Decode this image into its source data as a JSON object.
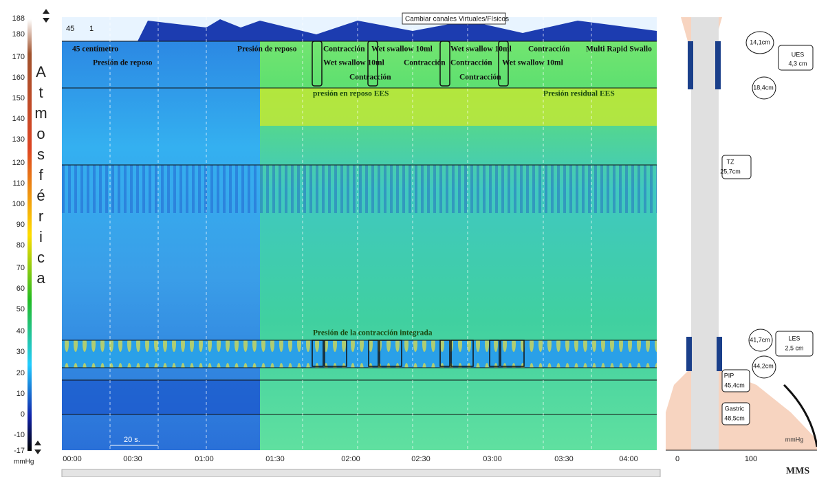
{
  "scale": {
    "ticks": [
      "188",
      "180",
      "170",
      "160",
      "150",
      "140",
      "130",
      "120",
      "110",
      "100",
      "90",
      "80",
      "70",
      "60",
      "50",
      "40",
      "30",
      "20",
      "10",
      "0",
      "-10",
      "-17"
    ],
    "unit": "mmHg",
    "title": "Atmosférica"
  },
  "tooltip": "Cambiar canales Virtuales/Físicos",
  "markers": [
    "45",
    "1"
  ],
  "annotations": [
    "45 centímetro",
    "Presión de reposo",
    "Presión de reposo",
    "Contracción",
    "Wet swallow 10ml",
    "Wet swallow 10ml",
    "Contracción",
    "Multi Rapid Swallo",
    "Wet swallow 10ml",
    "Contracción",
    "Contracción",
    "Wet swallow 10ml",
    "Contracción",
    "Contracción",
    "presión en reposo EES",
    "Presión residual EES",
    "Presión de la contracción integrada"
  ],
  "scale_bar": "20 s.",
  "time_axis": [
    "00:00",
    "00:30",
    "01:00",
    "01:30",
    "02:00",
    "02:30",
    "03:00",
    "03:30",
    "04:00"
  ],
  "side_panel": {
    "labels": [
      "14,1cm",
      "UES",
      "4,3 cm",
      "18,4cm",
      "TZ",
      "25,7cm",
      "41,7cm",
      "LES",
      "2,5 cm",
      "44,2cm",
      "PIP",
      "45,4cm",
      "Gastric",
      "48,5cm"
    ],
    "axis": [
      "0",
      "100"
    ],
    "unit": "mmHg"
  },
  "logo": "MMS"
}
